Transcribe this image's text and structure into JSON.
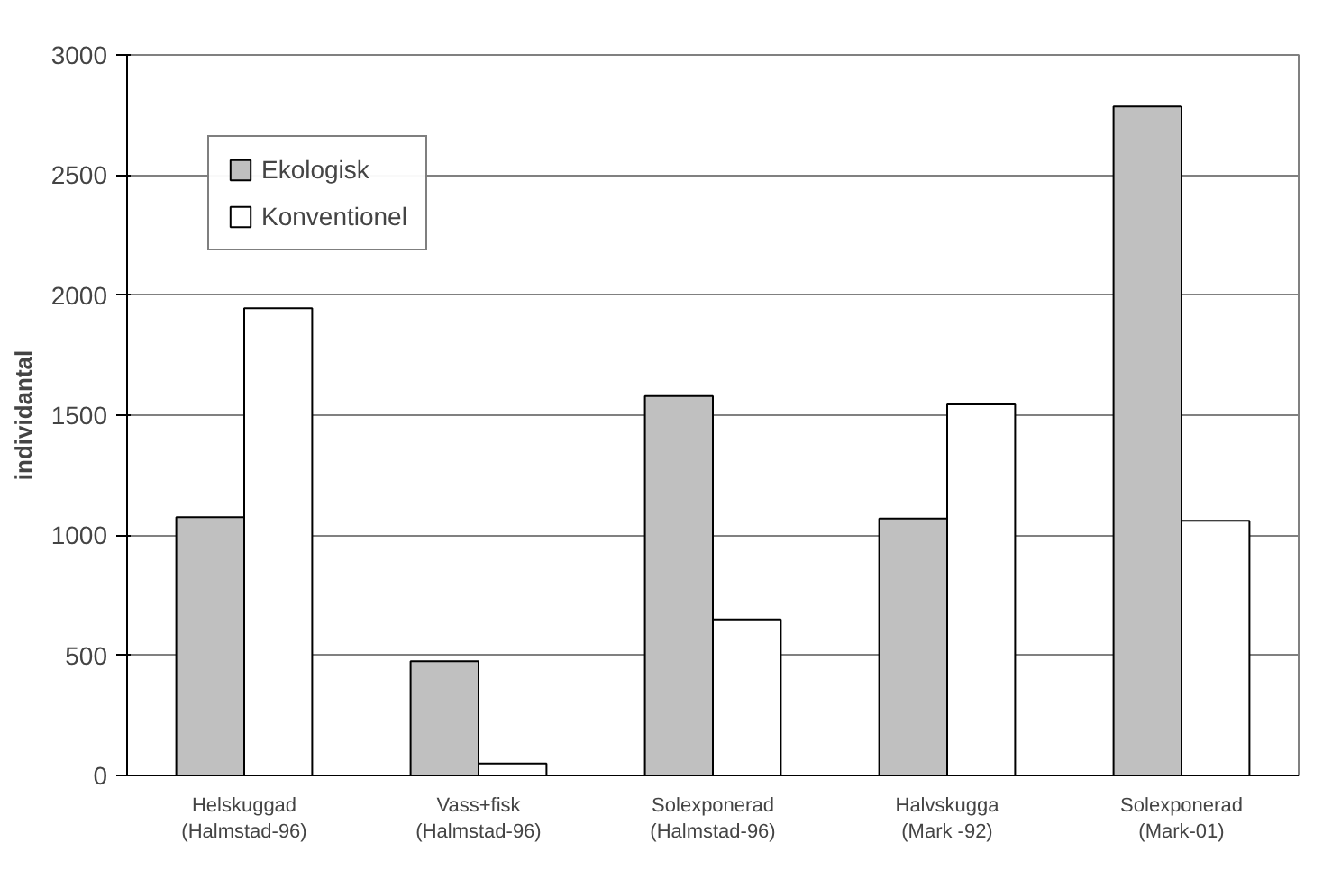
{
  "chart_data": {
    "type": "bar",
    "ylabel": "individantal",
    "categories": [
      "Helskuggad\n(Halmstad-96)",
      "Vass+fisk\n(Halmstad-96)",
      "Solexponerad\n(Halmstad-96)",
      "Halvskugga\n(Mark -92)",
      "Solexponerad\n(Mark-01)"
    ],
    "series": [
      {
        "name": "Ekologisk",
        "color": "#c0c0c0",
        "values": [
          1075,
          475,
          1580,
          1070,
          2785
        ]
      },
      {
        "name": "Konventionel",
        "color": "#ffffff",
        "values": [
          1945,
          50,
          650,
          1545,
          1060
        ]
      }
    ],
    "ylim": [
      0,
      3000
    ],
    "yticks": [
      0,
      500,
      1000,
      1500,
      2000,
      2500,
      3000
    ],
    "grid": "y",
    "legend": "top left"
  }
}
